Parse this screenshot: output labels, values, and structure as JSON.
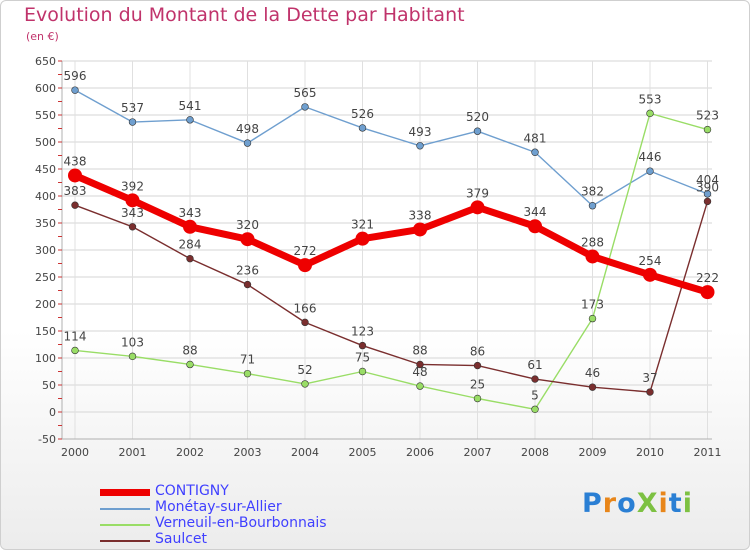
{
  "title": "Evolution du Montant de la Dette par Habitant",
  "subtitle": "(en €)",
  "logo": {
    "text": "ProXiti",
    "letters": [
      {
        "ch": "P",
        "color": "#2a7fd4"
      },
      {
        "ch": "r",
        "color": "#e8861a"
      },
      {
        "ch": "o",
        "color": "#2a7fd4"
      },
      {
        "ch": "X",
        "color": "#7dc142"
      },
      {
        "ch": "i",
        "color": "#e8861a"
      },
      {
        "ch": "t",
        "color": "#2a7fd4"
      },
      {
        "ch": "i",
        "color": "#7dc142"
      }
    ]
  },
  "chart_data": {
    "type": "line",
    "title": "Evolution du Montant de la Dette par Habitant",
    "subtitle": "(en €)",
    "x": [
      "2000",
      "2001",
      "2002",
      "2003",
      "2004",
      "2005",
      "2006",
      "2007",
      "2008",
      "2009",
      "2010",
      "2011"
    ],
    "ylim": [
      -50,
      650
    ],
    "yticks": [
      -50,
      0,
      50,
      100,
      150,
      200,
      250,
      300,
      350,
      400,
      450,
      500,
      550,
      600,
      650
    ],
    "grid": true,
    "legend_position": "bottom-left",
    "series": [
      {
        "name": "CONTIGNY",
        "color": "#ee0000",
        "values": [
          438,
          392,
          343,
          320,
          272,
          321,
          338,
          379,
          344,
          288,
          254,
          222
        ]
      },
      {
        "name": "Monétay-sur-Allier",
        "color": "#6f9fcf",
        "values": [
          596,
          537,
          541,
          498,
          565,
          526,
          493,
          520,
          481,
          382,
          446,
          404
        ]
      },
      {
        "name": "Verneuil-en-Bourbonnais",
        "color": "#99dd66",
        "values": [
          114,
          103,
          88,
          71,
          52,
          75,
          48,
          25,
          5,
          173,
          553,
          523
        ]
      },
      {
        "name": "Saulcet",
        "color": "#7a2e2e",
        "values": [
          383,
          343,
          284,
          236,
          166,
          123,
          88,
          86,
          61,
          46,
          37,
          390
        ]
      }
    ]
  }
}
